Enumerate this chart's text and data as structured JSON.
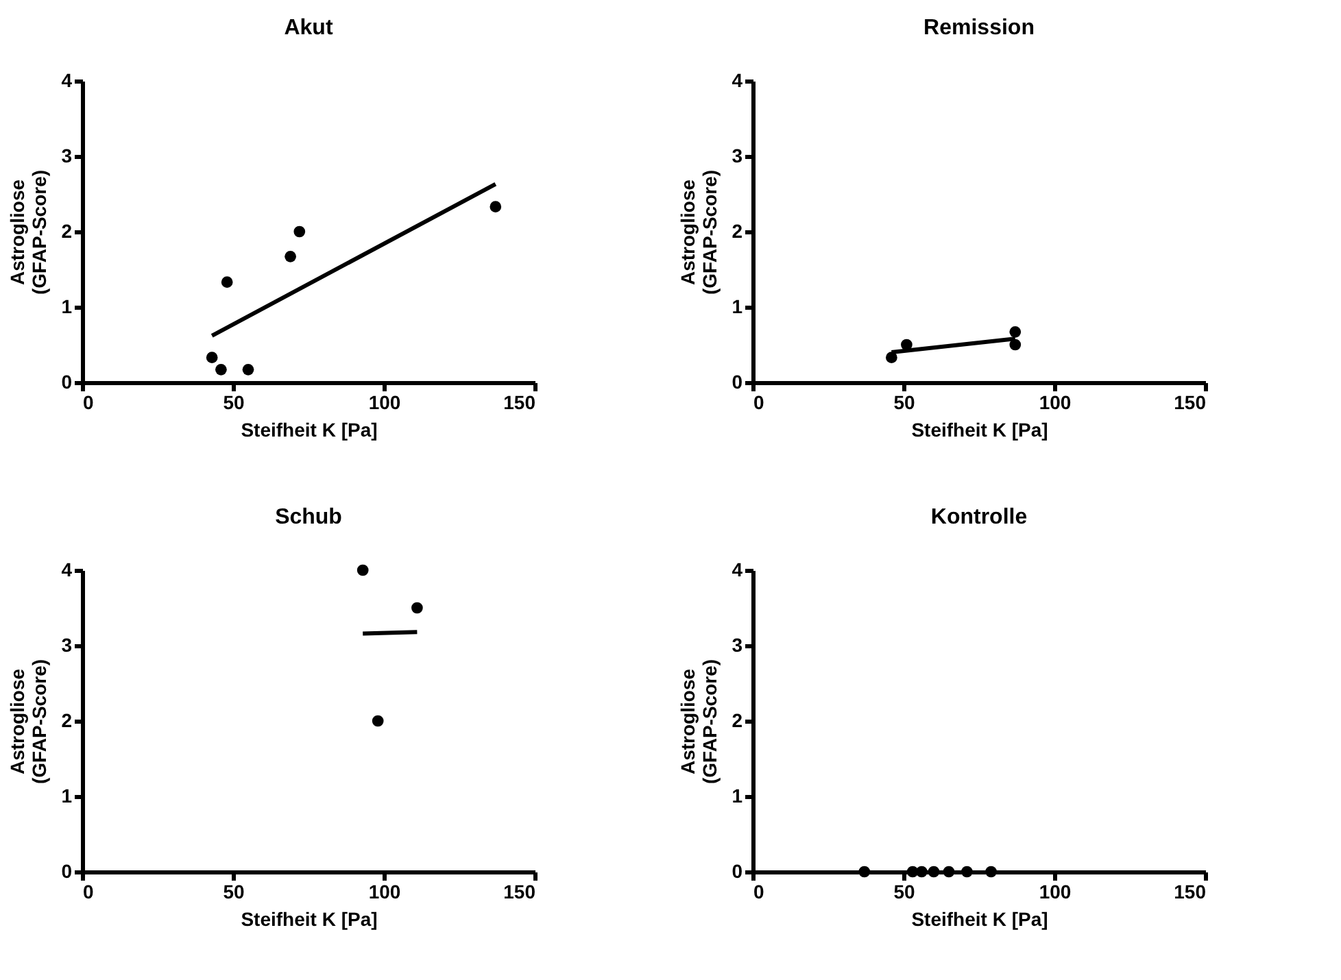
{
  "chart_data": [
    {
      "type": "scatter",
      "title": "Akut",
      "xlabel": "Steifheit K [Pa]",
      "ylabel": "Astrogliose\n(GFAP-Score)",
      "xlim": [
        0,
        150
      ],
      "xticks": [
        0,
        50,
        100,
        150
      ],
      "ylim": [
        0,
        4
      ],
      "yticks": [
        0,
        1,
        2,
        3,
        4
      ],
      "grid": false,
      "series": [
        {
          "color": "#000000",
          "marker": "circle",
          "x": [
            43,
            46,
            48,
            55,
            69,
            72,
            137
          ],
          "values": [
            0.33,
            0.17,
            1.33,
            0.17,
            1.67,
            2,
            2.33
          ]
        },
        {
          "type": "line",
          "color": "#000000",
          "x": [
            43,
            137
          ],
          "values": [
            0.62,
            2.63
          ]
        }
      ]
    },
    {
      "type": "scatter",
      "title": "Remission",
      "xlabel": "Steifheit K [Pa]",
      "ylabel": "Astrogliose\n(GFAP-Score)",
      "xlim": [
        0,
        150
      ],
      "xticks": [
        0,
        50,
        100,
        150
      ],
      "ylim": [
        0,
        4
      ],
      "yticks": [
        0,
        1,
        2,
        3,
        4
      ],
      "grid": false,
      "series": [
        {
          "color": "#000000",
          "marker": "circle",
          "x": [
            46,
            51,
            87,
            87
          ],
          "values": [
            0.33,
            0.5,
            0.67,
            0.5
          ]
        },
        {
          "type": "line",
          "color": "#000000",
          "x": [
            46,
            87
          ],
          "values": [
            0.4,
            0.58
          ]
        }
      ]
    },
    {
      "type": "scatter",
      "title": "Schub",
      "xlabel": "Steifheit K [Pa]",
      "ylabel": "Astrogliose\n(GFAP-Score)",
      "xlim": [
        0,
        150
      ],
      "xticks": [
        0,
        50,
        100,
        150
      ],
      "ylim": [
        0,
        4
      ],
      "yticks": [
        0,
        1,
        2,
        3,
        4
      ],
      "grid": false,
      "series": [
        {
          "color": "#000000",
          "marker": "circle",
          "x": [
            93,
            98,
            111
          ],
          "values": [
            4,
            2,
            3.5
          ]
        },
        {
          "type": "line",
          "color": "#000000",
          "x": [
            93,
            111
          ],
          "values": [
            3.16,
            3.18
          ]
        }
      ]
    },
    {
      "type": "scatter",
      "title": "Kontrolle",
      "xlabel": "Steifheit K [Pa]",
      "ylabel": "Astrogliose\n(GFAP-Score)",
      "xlim": [
        0,
        150
      ],
      "xticks": [
        0,
        50,
        100,
        150
      ],
      "ylim": [
        0,
        4
      ],
      "yticks": [
        0,
        1,
        2,
        3,
        4
      ],
      "grid": false,
      "series": [
        {
          "color": "#000000",
          "marker": "circle",
          "x": [
            37,
            53,
            56,
            60,
            65,
            71,
            79
          ],
          "values": [
            0,
            0,
            0,
            0,
            0,
            0,
            0
          ]
        }
      ]
    }
  ]
}
